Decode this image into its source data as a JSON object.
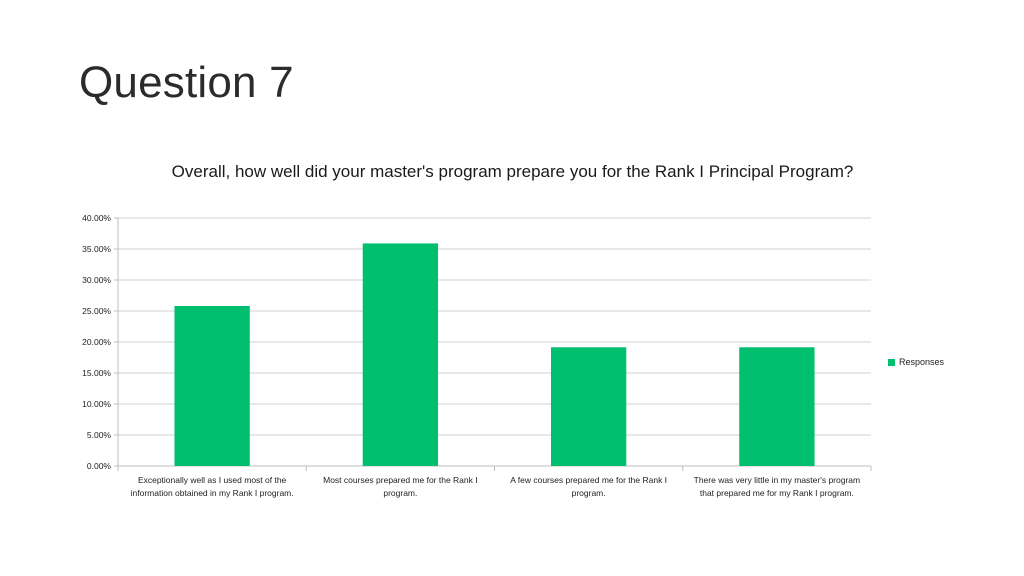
{
  "slide": {
    "title": "Question 7"
  },
  "chart_data": {
    "type": "bar",
    "title": "Overall, how well did your master's program prepare you for the Rank I Principal Program?",
    "categories": [
      "Exceptionally well as I used most of the information obtained in my Rank I program.",
      "Most courses prepared me for the Rank I program.",
      "A few courses prepared me for the Rank I program.",
      "There was very little in my master's program that prepared me for my Rank I program."
    ],
    "series": [
      {
        "name": "Responses",
        "values": [
          25.81,
          35.9,
          19.15,
          19.15
        ],
        "color": "#00bf6f"
      }
    ],
    "ylim": [
      0,
      40
    ],
    "yticks": [
      "0.00%",
      "5.00%",
      "10.00%",
      "15.00%",
      "20.00%",
      "25.00%",
      "30.00%",
      "35.00%",
      "40.00%"
    ],
    "grid": true,
    "legend_position": "right"
  }
}
